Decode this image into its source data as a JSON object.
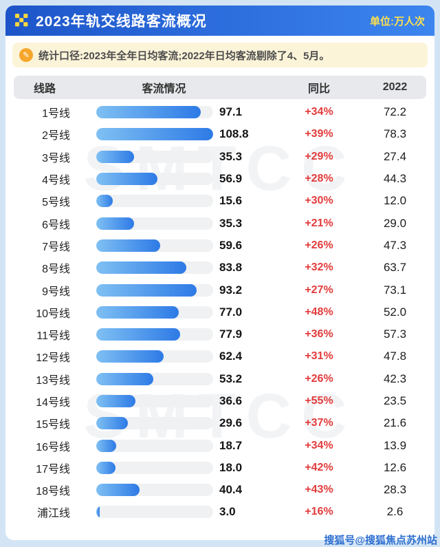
{
  "header": {
    "title": "2023年轨交线路客流概况",
    "unit_label": "单位:万人次"
  },
  "note": {
    "text": "统计口径:2023年全年日均客流;2022年日均客流剔除了4、5月。"
  },
  "table": {
    "columns": [
      "线路",
      "客流情况",
      "同比",
      "2022"
    ]
  },
  "watermark": {
    "big": "SMTCC",
    "credit": "搜狐号@搜狐焦点苏州站"
  },
  "colors": {
    "header_gradient_start": "#1d55c9",
    "header_gradient_end": "#3c85ef",
    "unit_yellow": "#ffe14d",
    "note_background": "#fcf4d9",
    "note_icon_orange": "#f6a62b",
    "bar_gradient_start": "#7fc0f3",
    "bar_gradient_end": "#2d7ae6",
    "bar_track": "#f0f1f2",
    "yoy_red": "#e23b3b"
  },
  "chart_data": {
    "type": "bar",
    "title": "2023年轨交线路客流概况",
    "unit": "万人次",
    "categories": [
      "1号线",
      "2号线",
      "3号线",
      "4号线",
      "5号线",
      "6号线",
      "7号线",
      "8号线",
      "9号线",
      "10号线",
      "11号线",
      "12号线",
      "13号线",
      "14号线",
      "15号线",
      "16号线",
      "17号线",
      "18号线",
      "浦江线"
    ],
    "series": [
      {
        "name": "2023",
        "values": [
          97.1,
          108.8,
          35.3,
          56.9,
          15.6,
          35.3,
          59.6,
          83.8,
          93.2,
          77.0,
          77.9,
          62.4,
          53.2,
          36.6,
          29.6,
          18.7,
          18.0,
          40.4,
          3.0
        ]
      },
      {
        "name": "2022",
        "values": [
          72.2,
          78.3,
          27.4,
          44.3,
          12.0,
          29.0,
          47.3,
          63.7,
          73.1,
          52.0,
          57.3,
          47.8,
          42.3,
          23.5,
          21.6,
          13.9,
          12.6,
          28.3,
          2.6
        ]
      }
    ],
    "yoy": [
      "+34%",
      "+39%",
      "+29%",
      "+28%",
      "+30%",
      "+21%",
      "+26%",
      "+32%",
      "+27%",
      "+48%",
      "+36%",
      "+31%",
      "+26%",
      "+55%",
      "+37%",
      "+34%",
      "+42%",
      "+43%",
      "+16%"
    ],
    "xlim": [
      0,
      108.8
    ],
    "legend_position": "none",
    "grid": false
  }
}
